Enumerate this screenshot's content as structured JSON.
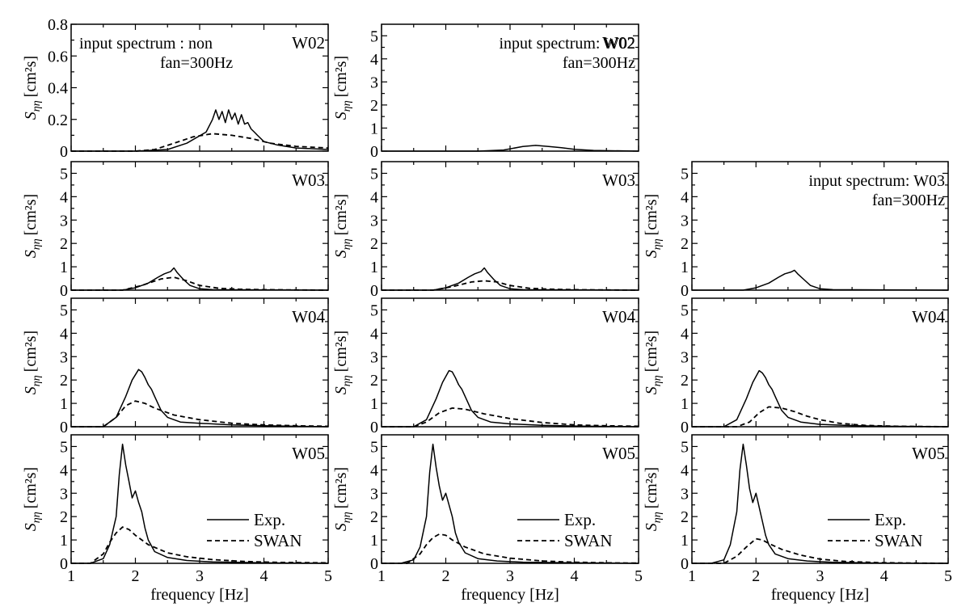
{
  "chart_data": [
    {
      "type": "line",
      "station": "W02",
      "annotation": [
        "input spectrum : non",
        "fan=300Hz"
      ],
      "yticks": [
        "0",
        "0.2",
        "0.4",
        "0.6",
        "0.8"
      ],
      "ylim": [
        0,
        0.8
      ],
      "xlim": [
        1,
        5
      ],
      "xticks": [],
      "xlabel": "",
      "ylabel_main": "S",
      "ylabel_sub": "ηη",
      "ylabel_unit": "[cm²s]",
      "legend": null,
      "series": [
        {
          "name": "Exp.",
          "x": [
            1,
            2,
            2.5,
            2.8,
            3.1,
            3.2,
            3.25,
            3.3,
            3.35,
            3.4,
            3.45,
            3.5,
            3.55,
            3.6,
            3.65,
            3.7,
            3.75,
            3.8,
            3.85,
            3.9,
            4.0,
            4.2,
            4.5,
            5
          ],
          "y": [
            0,
            0,
            0.01,
            0.05,
            0.12,
            0.2,
            0.26,
            0.2,
            0.25,
            0.18,
            0.26,
            0.2,
            0.24,
            0.17,
            0.23,
            0.17,
            0.18,
            0.14,
            0.12,
            0.1,
            0.06,
            0.04,
            0.02,
            0.01
          ]
        },
        {
          "name": "SWAN",
          "x": [
            1,
            2,
            2.3,
            2.6,
            2.9,
            3.2,
            3.5,
            3.8,
            4.1,
            4.5,
            5
          ],
          "y": [
            0,
            0,
            0.01,
            0.05,
            0.09,
            0.11,
            0.1,
            0.08,
            0.05,
            0.03,
            0.02
          ]
        }
      ]
    },
    {
      "type": "line",
      "station": "W02",
      "annotation": [
        "input spectrum: W02",
        "fan=300Hz"
      ],
      "yticks": [
        "0",
        "1",
        "2",
        "3",
        "4",
        "5"
      ],
      "ylim": [
        0,
        5.5
      ],
      "xlim": [
        1,
        5
      ],
      "xticks": [],
      "xlabel": "",
      "ylabel_main": "S",
      "ylabel_sub": "ηη",
      "ylabel_unit": "[cm²s]",
      "legend": null,
      "series": [
        {
          "name": "Exp.",
          "x": [
            1,
            2.5,
            2.9,
            3.2,
            3.4,
            3.6,
            3.8,
            4.0,
            4.3,
            5
          ],
          "y": [
            0,
            0,
            0.05,
            0.2,
            0.25,
            0.2,
            0.15,
            0.08,
            0.03,
            0
          ]
        }
      ]
    },
    null,
    {
      "type": "line",
      "station": "W03",
      "annotation": [],
      "yticks": [
        "0",
        "1",
        "2",
        "3",
        "4",
        "5"
      ],
      "ylim": [
        0,
        5.5
      ],
      "xlim": [
        1,
        5
      ],
      "xticks": [],
      "xlabel": "",
      "ylabel_main": "S",
      "ylabel_sub": "ηη",
      "ylabel_unit": "[cm²s]",
      "legend": null,
      "series": [
        {
          "name": "Exp.",
          "x": [
            1,
            1.8,
            2.0,
            2.2,
            2.35,
            2.45,
            2.55,
            2.6,
            2.65,
            2.75,
            2.85,
            3.0,
            3.2,
            5
          ],
          "y": [
            0,
            0,
            0.1,
            0.3,
            0.55,
            0.7,
            0.8,
            0.95,
            0.75,
            0.45,
            0.2,
            0.06,
            0.02,
            0
          ]
        },
        {
          "name": "SWAN",
          "x": [
            1,
            1.8,
            2.1,
            2.4,
            2.6,
            2.8,
            3.0,
            3.3,
            3.6,
            4,
            5
          ],
          "y": [
            0,
            0,
            0.2,
            0.48,
            0.55,
            0.4,
            0.2,
            0.08,
            0.04,
            0.02,
            0
          ]
        }
      ]
    },
    {
      "type": "line",
      "station": "W03",
      "annotation": [],
      "yticks": [
        "0",
        "1",
        "2",
        "3",
        "4",
        "5"
      ],
      "ylim": [
        0,
        5.5
      ],
      "xlim": [
        1,
        5
      ],
      "xticks": [],
      "xlabel": "",
      "ylabel_main": "S",
      "ylabel_sub": "ηη",
      "ylabel_unit": "[cm²s]",
      "legend": null,
      "series": [
        {
          "name": "Exp.",
          "x": [
            1,
            1.8,
            2.0,
            2.2,
            2.35,
            2.45,
            2.55,
            2.6,
            2.65,
            2.75,
            2.85,
            3.0,
            3.2,
            5
          ],
          "y": [
            0,
            0,
            0.1,
            0.3,
            0.55,
            0.7,
            0.8,
            0.95,
            0.75,
            0.45,
            0.2,
            0.06,
            0.02,
            0
          ]
        },
        {
          "name": "SWAN",
          "x": [
            1,
            1.8,
            2.1,
            2.4,
            2.6,
            2.8,
            3.0,
            3.3,
            3.6,
            4,
            5
          ],
          "y": [
            0,
            0,
            0.15,
            0.35,
            0.4,
            0.35,
            0.2,
            0.08,
            0.04,
            0.02,
            0
          ]
        }
      ]
    },
    {
      "type": "line",
      "station": "",
      "annotation": [
        "input spectrum: W03",
        "fan=300Hz"
      ],
      "yticks": [
        "0",
        "1",
        "2",
        "3",
        "4",
        "5"
      ],
      "ylim": [
        0,
        5.5
      ],
      "xlim": [
        1,
        5
      ],
      "xticks": [],
      "xlabel": "",
      "ylabel_main": "S",
      "ylabel_sub": "ηη",
      "ylabel_unit": "[cm²s]",
      "legend": null,
      "series": [
        {
          "name": "Exp.",
          "x": [
            1,
            1.8,
            2.0,
            2.2,
            2.35,
            2.45,
            2.55,
            2.6,
            2.65,
            2.75,
            2.85,
            3.0,
            3.2,
            5
          ],
          "y": [
            0,
            0,
            0.1,
            0.3,
            0.55,
            0.7,
            0.78,
            0.85,
            0.7,
            0.45,
            0.2,
            0.06,
            0.02,
            0
          ]
        }
      ]
    },
    {
      "type": "line",
      "station": "W04",
      "annotation": [],
      "yticks": [
        "0",
        "1",
        "2",
        "3",
        "4",
        "5"
      ],
      "ylim": [
        0,
        5.5
      ],
      "xlim": [
        1,
        5
      ],
      "xticks": [],
      "xlabel": "",
      "ylabel_main": "S",
      "ylabel_sub": "ηη",
      "ylabel_unit": "[cm²s]",
      "legend": null,
      "series": [
        {
          "name": "Exp.",
          "x": [
            1,
            1.5,
            1.7,
            1.85,
            1.95,
            2.05,
            2.1,
            2.15,
            2.2,
            2.25,
            2.3,
            2.4,
            2.5,
            2.7,
            3.0,
            3.5,
            4,
            5
          ],
          "y": [
            0,
            0,
            0.4,
            1.3,
            2.0,
            2.45,
            2.35,
            2.1,
            1.8,
            1.6,
            1.3,
            0.7,
            0.4,
            0.2,
            0.15,
            0.08,
            0.04,
            0
          ]
        },
        {
          "name": "SWAN",
          "x": [
            1,
            1.5,
            1.7,
            1.85,
            2.0,
            2.15,
            2.3,
            2.6,
            3.0,
            3.5,
            4,
            4.5,
            5
          ],
          "y": [
            0,
            0,
            0.4,
            0.9,
            1.1,
            1.0,
            0.8,
            0.5,
            0.3,
            0.15,
            0.08,
            0.04,
            0.02
          ]
        }
      ]
    },
    {
      "type": "line",
      "station": "W04",
      "annotation": [],
      "yticks": [
        "0",
        "1",
        "2",
        "3",
        "4",
        "5"
      ],
      "ylim": [
        0,
        5.5
      ],
      "xlim": [
        1,
        5
      ],
      "xticks": [],
      "xlabel": "",
      "ylabel_main": "S",
      "ylabel_sub": "ηη",
      "ylabel_unit": "[cm²s]",
      "legend": null,
      "series": [
        {
          "name": "Exp.",
          "x": [
            1,
            1.5,
            1.7,
            1.85,
            1.95,
            2.05,
            2.1,
            2.15,
            2.2,
            2.25,
            2.3,
            2.4,
            2.5,
            2.7,
            3.0,
            3.5,
            4,
            5
          ],
          "y": [
            0,
            0,
            0.3,
            1.2,
            1.9,
            2.4,
            2.35,
            2.1,
            1.8,
            1.6,
            1.3,
            0.7,
            0.4,
            0.2,
            0.12,
            0.06,
            0.03,
            0
          ]
        },
        {
          "name": "SWAN",
          "x": [
            1,
            1.5,
            1.7,
            1.9,
            2.1,
            2.3,
            2.6,
            3.0,
            3.5,
            4,
            4.5,
            5
          ],
          "y": [
            0,
            0,
            0.2,
            0.6,
            0.8,
            0.75,
            0.55,
            0.35,
            0.18,
            0.08,
            0.04,
            0.02
          ]
        }
      ]
    },
    {
      "type": "line",
      "station": "W04",
      "annotation": [],
      "yticks": [
        "0",
        "1",
        "2",
        "3",
        "4",
        "5"
      ],
      "ylim": [
        0,
        5.5
      ],
      "xlim": [
        1,
        5
      ],
      "xticks": [],
      "xlabel": "",
      "ylabel_main": "S",
      "ylabel_sub": "ηη",
      "ylabel_unit": "[cm²s]",
      "legend": null,
      "series": [
        {
          "name": "Exp.",
          "x": [
            1,
            1.5,
            1.7,
            1.85,
            1.95,
            2.05,
            2.1,
            2.15,
            2.2,
            2.25,
            2.3,
            2.4,
            2.5,
            2.7,
            3.0,
            3.5,
            4,
            5
          ],
          "y": [
            0,
            0,
            0.3,
            1.2,
            1.9,
            2.4,
            2.3,
            2.1,
            1.8,
            1.6,
            1.3,
            0.7,
            0.4,
            0.2,
            0.1,
            0.05,
            0.02,
            0
          ]
        },
        {
          "name": "SWAN",
          "x": [
            1,
            1.7,
            1.9,
            2.05,
            2.2,
            2.4,
            2.6,
            2.8,
            3.0,
            3.3,
            3.7,
            4.2,
            5
          ],
          "y": [
            0,
            0,
            0.2,
            0.6,
            0.85,
            0.8,
            0.65,
            0.45,
            0.3,
            0.15,
            0.06,
            0.02,
            0
          ]
        }
      ]
    },
    {
      "type": "line",
      "station": "W05",
      "annotation": [],
      "yticks": [
        "0",
        "1",
        "2",
        "3",
        "4",
        "5"
      ],
      "ylim": [
        0,
        5.5
      ],
      "xlim": [
        1,
        5
      ],
      "xticks": [
        "1",
        "2",
        "3",
        "4",
        "5"
      ],
      "xlabel": "frequency [Hz]",
      "ylabel_main": "S",
      "ylabel_sub": "ηη",
      "ylabel_unit": "[cm²s]",
      "legend": {
        "exp": "Exp.",
        "swan": "SWAN"
      },
      "series": [
        {
          "name": "Exp.",
          "x": [
            1,
            1.3,
            1.5,
            1.6,
            1.7,
            1.75,
            1.8,
            1.85,
            1.9,
            1.95,
            2.0,
            2.05,
            2.1,
            2.15,
            2.2,
            2.3,
            2.5,
            2.8,
            3.2,
            4,
            5
          ],
          "y": [
            0,
            0,
            0.2,
            0.8,
            2.0,
            3.8,
            5.1,
            4.2,
            3.5,
            2.8,
            3.1,
            2.6,
            2.2,
            1.5,
            1.0,
            0.5,
            0.25,
            0.12,
            0.06,
            0.02,
            0
          ]
        },
        {
          "name": "SWAN",
          "x": [
            1,
            1.3,
            1.5,
            1.6,
            1.7,
            1.8,
            1.9,
            2.0,
            2.2,
            2.5,
            2.8,
            3.2,
            3.7,
            4.2,
            5
          ],
          "y": [
            0,
            0,
            0.4,
            0.9,
            1.3,
            1.55,
            1.45,
            1.2,
            0.8,
            0.45,
            0.28,
            0.16,
            0.08,
            0.04,
            0.02
          ]
        }
      ]
    },
    {
      "type": "line",
      "station": "W05",
      "annotation": [],
      "yticks": [
        "0",
        "1",
        "2",
        "3",
        "4",
        "5"
      ],
      "ylim": [
        0,
        5.5
      ],
      "xlim": [
        1,
        5
      ],
      "xticks": [
        "1",
        "2",
        "3",
        "4",
        "5"
      ],
      "xlabel": "frequency [Hz]",
      "ylabel_main": "S",
      "ylabel_sub": "ηη",
      "ylabel_unit": "[cm²s]",
      "legend": {
        "exp": "Exp.",
        "swan": "SWAN"
      },
      "series": [
        {
          "name": "Exp.",
          "x": [
            1,
            1.3,
            1.5,
            1.6,
            1.7,
            1.75,
            1.8,
            1.85,
            1.9,
            1.95,
            2.0,
            2.05,
            2.1,
            2.15,
            2.2,
            2.3,
            2.5,
            2.8,
            3.2,
            4,
            5
          ],
          "y": [
            0,
            0,
            0.15,
            0.7,
            2.0,
            3.9,
            5.1,
            4.1,
            3.3,
            2.7,
            3.0,
            2.5,
            2.0,
            1.3,
            0.9,
            0.45,
            0.2,
            0.1,
            0.05,
            0.02,
            0
          ]
        },
        {
          "name": "SWAN",
          "x": [
            1,
            1.4,
            1.6,
            1.7,
            1.8,
            1.9,
            2.0,
            2.1,
            2.3,
            2.6,
            3.0,
            3.5,
            4,
            4.5,
            5
          ],
          "y": [
            0,
            0,
            0.4,
            0.8,
            1.1,
            1.25,
            1.2,
            1.0,
            0.7,
            0.4,
            0.22,
            0.1,
            0.05,
            0.02,
            0.01
          ]
        }
      ]
    },
    {
      "type": "line",
      "station": "W05",
      "annotation": [],
      "yticks": [
        "0",
        "1",
        "2",
        "3",
        "4",
        "5"
      ],
      "ylim": [
        0,
        5.5
      ],
      "xlim": [
        1,
        5
      ],
      "xticks": [
        "1",
        "2",
        "3",
        "4",
        "5"
      ],
      "xlabel": "frequency [Hz]",
      "ylabel_main": "S",
      "ylabel_sub": "ηη",
      "ylabel_unit": "[cm²s]",
      "legend": {
        "exp": "Exp.",
        "swan": "SWAN"
      },
      "series": [
        {
          "name": "Exp.",
          "x": [
            1,
            1.3,
            1.5,
            1.6,
            1.7,
            1.75,
            1.8,
            1.85,
            1.9,
            1.95,
            2.0,
            2.05,
            2.1,
            2.15,
            2.2,
            2.3,
            2.5,
            2.8,
            3.2,
            4,
            5
          ],
          "y": [
            0,
            0,
            0.15,
            0.8,
            2.2,
            4.0,
            5.1,
            4.2,
            3.2,
            2.6,
            3.0,
            2.4,
            1.8,
            1.2,
            0.8,
            0.4,
            0.2,
            0.1,
            0.04,
            0.01,
            0
          ]
        },
        {
          "name": "SWAN",
          "x": [
            1,
            1.5,
            1.7,
            1.85,
            2.0,
            2.1,
            2.2,
            2.4,
            2.7,
            3.0,
            3.4,
            3.9,
            4.5,
            5
          ],
          "y": [
            0,
            0,
            0.3,
            0.7,
            1.05,
            1.0,
            0.85,
            0.6,
            0.35,
            0.18,
            0.08,
            0.03,
            0.01,
            0
          ]
        }
      ]
    }
  ]
}
